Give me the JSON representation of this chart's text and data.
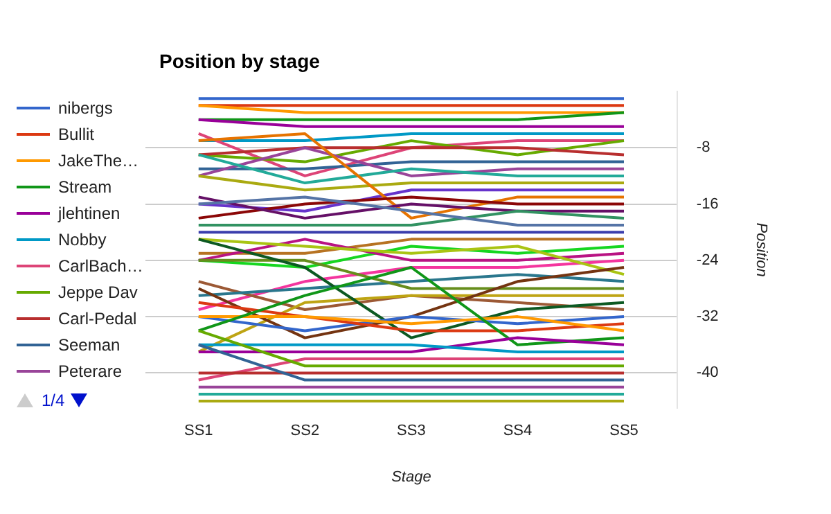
{
  "chart_data": {
    "type": "line",
    "title": "Position by stage",
    "xlabel": "Stage",
    "ylabel": "Position",
    "categories": [
      "SS1",
      "SS2",
      "SS3",
      "SS4",
      "SS5"
    ],
    "ylim": [
      -45,
      0
    ],
    "yticks": [
      -8,
      -16,
      -24,
      -32,
      -40
    ],
    "grid": "y",
    "legend": "left",
    "marker": "none",
    "line_style": "solid",
    "annotations": [
      "1/4"
    ],
    "series": [
      {
        "name": "nibergs",
        "color": "#3366cc",
        "values": [
          -1,
          -1,
          -1,
          -1,
          -1
        ]
      },
      {
        "name": "Bullit",
        "color": "#dc3912",
        "values": [
          -2,
          -2,
          -2,
          -2,
          -2
        ]
      },
      {
        "name": "JakeThe…",
        "color": "#ff9900",
        "values": [
          -2,
          -3,
          -3,
          -3,
          -3
        ]
      },
      {
        "name": "Stream",
        "color": "#109618",
        "values": [
          -4,
          -4,
          -4,
          -4,
          -3
        ]
      },
      {
        "name": "jlehtinen",
        "color": "#990099",
        "values": [
          -4,
          -5,
          -5,
          -5,
          -5
        ]
      },
      {
        "name": "Nobby",
        "color": "#0099c6",
        "values": [
          -7,
          -7,
          -6,
          -6,
          -6
        ]
      },
      {
        "name": "CarlBach…",
        "color": "#dd4477",
        "values": [
          -6,
          -12,
          -8,
          -7,
          -7
        ]
      },
      {
        "name": "Jeppe Dav",
        "color": "#66aa00",
        "values": [
          -9,
          -10,
          -7,
          -9,
          -7
        ]
      },
      {
        "name": "Carl-Pedal",
        "color": "#b82e2e",
        "values": [
          -9,
          -8,
          -8,
          -8,
          -9
        ]
      },
      {
        "name": "Seeman",
        "color": "#316395",
        "values": [
          -11,
          -11,
          -10,
          -10,
          -10
        ]
      },
      {
        "name": "Peterare",
        "color": "#994499",
        "values": [
          -12,
          -8,
          -12,
          -11,
          -11
        ]
      },
      {
        "color": "#22aa99",
        "values": [
          -9,
          -13,
          -11,
          -12,
          -12
        ]
      },
      {
        "color": "#aaaa11",
        "values": [
          -12,
          -14,
          -13,
          -13,
          -13
        ]
      },
      {
        "color": "#6633cc",
        "values": [
          -16,
          -17,
          -14,
          -14,
          -14
        ]
      },
      {
        "color": "#e67300",
        "values": [
          -7,
          -6,
          -18,
          -15,
          -15
        ]
      },
      {
        "color": "#8b0707",
        "values": [
          -18,
          -16,
          -15,
          -16,
          -16
        ]
      },
      {
        "color": "#651067",
        "values": [
          -15,
          -18,
          -16,
          -17,
          -17
        ]
      },
      {
        "color": "#329262",
        "values": [
          -19,
          -19,
          -19,
          -17,
          -18
        ]
      },
      {
        "color": "#5574a6",
        "values": [
          -16,
          -15,
          -17,
          -19,
          -19
        ]
      },
      {
        "color": "#3b3eac",
        "values": [
          -20,
          -20,
          -20,
          -20,
          -20
        ]
      },
      {
        "color": "#b77322",
        "values": [
          -23,
          -23,
          -21,
          -21,
          -21
        ]
      },
      {
        "color": "#16d620",
        "values": [
          -24,
          -25,
          -22,
          -23,
          -22
        ]
      },
      {
        "color": "#b91383",
        "values": [
          -24,
          -21,
          -24,
          -24,
          -23
        ]
      },
      {
        "color": "#f4359e",
        "values": [
          -31,
          -27,
          -25,
          -25,
          -24
        ]
      },
      {
        "color": "#9c5935",
        "values": [
          -27,
          -31,
          -29,
          -30,
          -31
        ]
      },
      {
        "color": "#a9c413",
        "values": [
          -21,
          -22,
          -23,
          -22,
          -26
        ]
      },
      {
        "color": "#2a778d",
        "values": [
          -29,
          -28,
          -27,
          -26,
          -27
        ]
      },
      {
        "color": "#668d1c",
        "values": [
          -24,
          -24,
          -28,
          -28,
          -28
        ]
      },
      {
        "color": "#bea413",
        "values": [
          -37,
          -30,
          -29,
          -29,
          -29
        ]
      },
      {
        "color": "#0c5922",
        "values": [
          -21,
          -25,
          -35,
          -31,
          -30
        ]
      },
      {
        "color": "#743411",
        "values": [
          -28,
          -35,
          -32,
          -27,
          -25
        ]
      },
      {
        "color": "#3366cc",
        "values": [
          -32,
          -34,
          -32,
          -33,
          -32
        ]
      },
      {
        "color": "#dc3912",
        "values": [
          -30,
          -32,
          -34,
          -34,
          -33
        ]
      },
      {
        "color": "#ff9900",
        "values": [
          -32,
          -32,
          -33,
          -32,
          -34
        ]
      },
      {
        "color": "#109618",
        "values": [
          -34,
          -29,
          -25,
          -36,
          -35
        ]
      },
      {
        "color": "#990099",
        "values": [
          -37,
          -37,
          -37,
          -35,
          -36
        ]
      },
      {
        "color": "#0099c6",
        "values": [
          -36,
          -36,
          -36,
          -37,
          -37
        ]
      },
      {
        "color": "#dd4477",
        "values": [
          -41,
          -38,
          -38,
          -38,
          -38
        ]
      },
      {
        "color": "#66aa00",
        "values": [
          -34,
          -39,
          -39,
          -39,
          -39
        ]
      },
      {
        "color": "#b82e2e",
        "values": [
          -40,
          -40,
          -40,
          -40,
          -40
        ]
      },
      {
        "color": "#316395",
        "values": [
          -36,
          -41,
          -41,
          -41,
          -41
        ]
      },
      {
        "color": "#994499",
        "values": [
          -42,
          -42,
          -42,
          -42,
          -42
        ]
      },
      {
        "color": "#22aa99",
        "values": [
          -43,
          -43,
          -43,
          -43,
          -43
        ]
      },
      {
        "color": "#aaaa11",
        "values": [
          -44,
          -44,
          -44,
          -44,
          -44
        ]
      }
    ]
  }
}
